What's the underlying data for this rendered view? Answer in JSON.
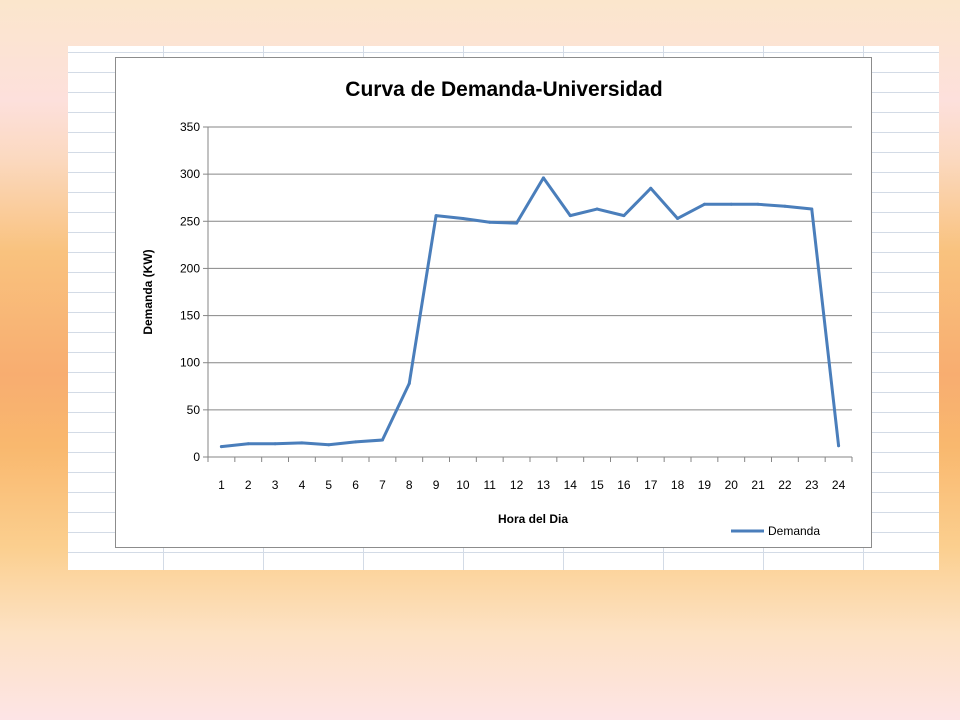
{
  "chart_data": {
    "type": "line",
    "title": "Curva de  Demanda-Universidad",
    "xlabel": "Hora del Dia",
    "ylabel": "Demanda (KW)",
    "categories": [
      "1",
      "2",
      "3",
      "4",
      "5",
      "6",
      "7",
      "8",
      "9",
      "10",
      "11",
      "12",
      "13",
      "14",
      "15",
      "16",
      "17",
      "18",
      "19",
      "20",
      "21",
      "22",
      "23",
      "24"
    ],
    "ylim": [
      0,
      350
    ],
    "yticks": [
      0,
      50,
      100,
      150,
      200,
      250,
      300,
      350
    ],
    "grid": true,
    "legend_position": "bottom-right",
    "series": [
      {
        "name": "Demanda",
        "color": "#4a7ebb",
        "values": [
          11,
          14,
          14,
          15,
          13,
          16,
          18,
          78,
          256,
          253,
          249,
          248,
          296,
          256,
          263,
          256,
          285,
          253,
          268,
          268,
          268,
          266,
          263,
          12
        ]
      }
    ]
  }
}
